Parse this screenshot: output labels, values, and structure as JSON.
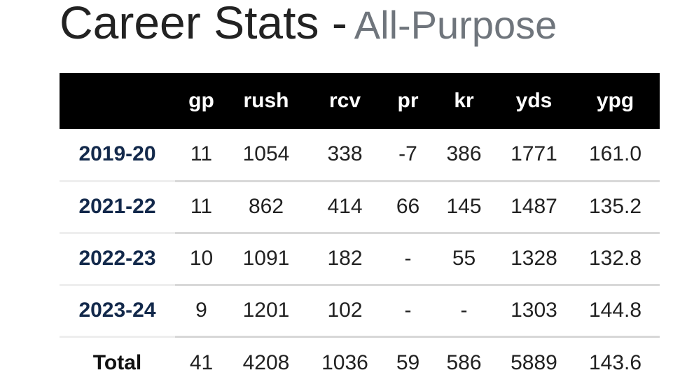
{
  "header": {
    "title": "Career Stats -",
    "subtitle": "All-Purpose"
  },
  "table": {
    "columns": [
      "gp",
      "rush",
      "rcv",
      "pr",
      "kr",
      "yds",
      "ypg"
    ],
    "rows": [
      {
        "label": "2019-20",
        "cells": [
          "11",
          "1054",
          "338",
          "-7",
          "386",
          "1771",
          "161.0"
        ]
      },
      {
        "label": "2021-22",
        "cells": [
          "11",
          "862",
          "414",
          "66",
          "145",
          "1487",
          "135.2"
        ]
      },
      {
        "label": "2022-23",
        "cells": [
          "10",
          "1091",
          "182",
          "-",
          "55",
          "1328",
          "132.8"
        ]
      },
      {
        "label": "2023-24",
        "cells": [
          "9",
          "1201",
          "102",
          "-",
          "-",
          "1303",
          "144.8"
        ]
      }
    ],
    "total": {
      "label": "Total",
      "cells": [
        "41",
        "4208",
        "1036",
        "59",
        "586",
        "5889",
        "143.6"
      ]
    }
  }
}
